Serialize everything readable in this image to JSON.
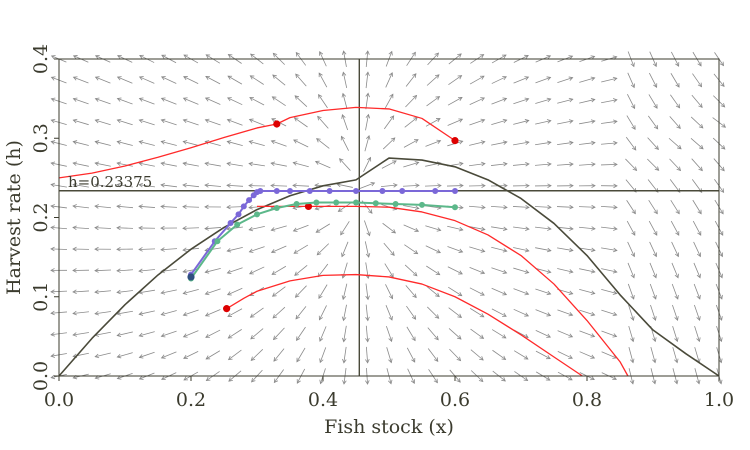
{
  "chart_data": {
    "type": "line",
    "title": "",
    "xlabel": "Fish stock (x)",
    "ylabel": "Harvest rate (h)",
    "xlim": [
      0.0,
      1.0
    ],
    "ylim": [
      0.0,
      0.4
    ],
    "x_ticks": [
      "0.0",
      "0.2",
      "0.4",
      "0.6",
      "0.8",
      "1.0"
    ],
    "y_ticks": [
      "0.0",
      "0.1",
      "0.2",
      "0.3",
      "0.4"
    ],
    "grid": false,
    "annotation": "h=0.23375",
    "reference_lines": {
      "horizontal_h": 0.23375,
      "vertical_x": 0.455
    },
    "colors": {
      "trajectory": "#ff2a2a",
      "start_marker": "#dd0000",
      "reference": "#4a4a3a",
      "purple_series": "#7b68d8",
      "green_series": "#5cb88a",
      "field": "#8a8a8a"
    },
    "series": [
      {
        "kind": "curve",
        "color": "reference",
        "points": [
          [
            0.0,
            0.0
          ],
          [
            0.05,
            0.0475
          ],
          [
            0.1,
            0.09
          ],
          [
            0.15,
            0.1275
          ],
          [
            0.2,
            0.16
          ],
          [
            0.25,
            0.1875
          ],
          [
            0.3,
            0.21
          ],
          [
            0.35,
            0.2275
          ],
          [
            0.4,
            0.24
          ],
          [
            0.45,
            0.2475
          ],
          [
            0.5,
            0.275
          ],
          [
            0.55,
            0.2725
          ],
          [
            0.6,
            0.264
          ],
          [
            0.65,
            0.2475
          ],
          [
            0.7,
            0.224
          ],
          [
            0.75,
            0.1925
          ],
          [
            0.8,
            0.152
          ],
          [
            0.85,
            0.1025
          ],
          [
            0.9,
            0.058
          ],
          [
            0.95,
            0.028
          ],
          [
            1.0,
            0.0
          ]
        ]
      },
      {
        "kind": "curve",
        "color": "trajectory",
        "start": [
          0.33,
          0.318
        ],
        "end": [
          0.6,
          0.297
        ],
        "points": [
          [
            0.0,
            0.25
          ],
          [
            0.05,
            0.256
          ],
          [
            0.1,
            0.265
          ],
          [
            0.15,
            0.276
          ],
          [
            0.2,
            0.288
          ],
          [
            0.25,
            0.301
          ],
          [
            0.3,
            0.313
          ],
          [
            0.33,
            0.318
          ],
          [
            0.35,
            0.326
          ],
          [
            0.4,
            0.335
          ],
          [
            0.45,
            0.339
          ],
          [
            0.5,
            0.337
          ],
          [
            0.55,
            0.325
          ],
          [
            0.6,
            0.297
          ]
        ]
      },
      {
        "kind": "curve",
        "color": "trajectory",
        "start": [
          0.378,
          0.214
        ],
        "points": [
          [
            0.3,
            0.214
          ],
          [
            0.35,
            0.214
          ],
          [
            0.378,
            0.214
          ],
          [
            0.45,
            0.214
          ],
          [
            0.5,
            0.213
          ],
          [
            0.55,
            0.207
          ],
          [
            0.6,
            0.196
          ],
          [
            0.65,
            0.178
          ],
          [
            0.7,
            0.152
          ],
          [
            0.75,
            0.116
          ],
          [
            0.8,
            0.07
          ],
          [
            0.85,
            0.018
          ],
          [
            0.862,
            0.0
          ]
        ]
      },
      {
        "kind": "curve",
        "color": "trajectory",
        "start": [
          0.254,
          0.085
        ],
        "points": [
          [
            0.254,
            0.085
          ],
          [
            0.28,
            0.098
          ],
          [
            0.3,
            0.107
          ],
          [
            0.35,
            0.12
          ],
          [
            0.4,
            0.127
          ],
          [
            0.45,
            0.128
          ],
          [
            0.5,
            0.125
          ],
          [
            0.55,
            0.116
          ],
          [
            0.6,
            0.1
          ],
          [
            0.65,
            0.078
          ],
          [
            0.7,
            0.052
          ],
          [
            0.75,
            0.024
          ],
          [
            0.793,
            0.0
          ]
        ]
      },
      {
        "kind": "dotted",
        "color": "purple_series",
        "points": [
          [
            0.2,
            0.128
          ],
          [
            0.236,
            0.17
          ],
          [
            0.26,
            0.193
          ],
          [
            0.272,
            0.204
          ],
          [
            0.28,
            0.214
          ],
          [
            0.288,
            0.222
          ],
          [
            0.295,
            0.228
          ],
          [
            0.3,
            0.232
          ],
          [
            0.305,
            0.2335
          ],
          [
            0.33,
            0.2335
          ],
          [
            0.35,
            0.2335
          ],
          [
            0.38,
            0.2335
          ],
          [
            0.41,
            0.2335
          ],
          [
            0.45,
            0.2335
          ],
          [
            0.49,
            0.2335
          ],
          [
            0.52,
            0.2335
          ],
          [
            0.57,
            0.2335
          ],
          [
            0.6,
            0.2335
          ]
        ]
      },
      {
        "kind": "dotted",
        "color": "green_series",
        "points": [
          [
            0.2,
            0.123
          ],
          [
            0.24,
            0.17
          ],
          [
            0.27,
            0.191
          ],
          [
            0.3,
            0.204
          ],
          [
            0.33,
            0.212
          ],
          [
            0.36,
            0.217
          ],
          [
            0.39,
            0.219
          ],
          [
            0.42,
            0.219
          ],
          [
            0.45,
            0.219
          ],
          [
            0.48,
            0.218
          ],
          [
            0.51,
            0.217
          ],
          [
            0.55,
            0.216
          ],
          [
            0.6,
            0.213
          ]
        ]
      }
    ]
  }
}
